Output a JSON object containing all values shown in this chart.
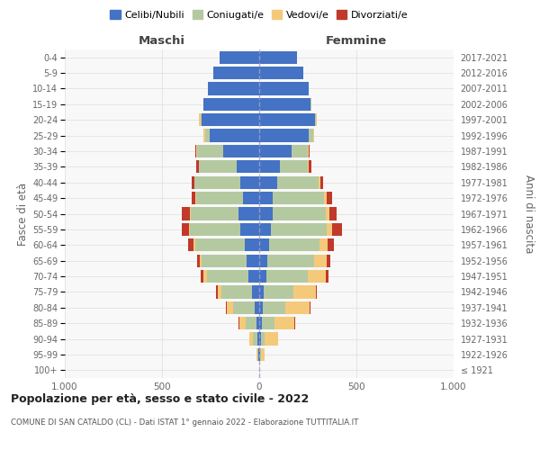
{
  "age_groups": [
    "100+",
    "95-99",
    "90-94",
    "85-89",
    "80-84",
    "75-79",
    "70-74",
    "65-69",
    "60-64",
    "55-59",
    "50-54",
    "45-49",
    "40-44",
    "35-39",
    "30-34",
    "25-29",
    "20-24",
    "15-19",
    "10-14",
    "5-9",
    "0-4"
  ],
  "birth_years": [
    "≤ 1921",
    "1922-1926",
    "1927-1931",
    "1932-1936",
    "1937-1941",
    "1942-1946",
    "1947-1951",
    "1952-1956",
    "1957-1961",
    "1962-1966",
    "1967-1971",
    "1972-1976",
    "1977-1981",
    "1982-1986",
    "1987-1991",
    "1992-1996",
    "1997-2001",
    "2002-2006",
    "2007-2011",
    "2012-2016",
    "2017-2021"
  ],
  "colors": {
    "celibe": "#4472c4",
    "coniugato": "#b5c9a1",
    "vedovo": "#f5c97a",
    "divorziato": "#c0392b"
  },
  "maschi": {
    "celibe": [
      1,
      3,
      8,
      15,
      25,
      35,
      55,
      65,
      75,
      95,
      105,
      85,
      95,
      115,
      185,
      255,
      295,
      285,
      265,
      235,
      205
    ],
    "coniugato": [
      0,
      4,
      25,
      55,
      110,
      160,
      215,
      230,
      255,
      260,
      245,
      240,
      240,
      195,
      135,
      25,
      8,
      2,
      0,
      0,
      0
    ],
    "vedovo": [
      0,
      5,
      20,
      30,
      30,
      20,
      18,
      12,
      8,
      5,
      5,
      2,
      0,
      0,
      5,
      5,
      5,
      0,
      0,
      0,
      0
    ],
    "divorziato": [
      0,
      0,
      0,
      5,
      5,
      5,
      12,
      12,
      28,
      38,
      42,
      22,
      12,
      12,
      5,
      0,
      0,
      0,
      0,
      0,
      0
    ]
  },
  "femmine": {
    "nubile": [
      1,
      3,
      8,
      12,
      18,
      22,
      38,
      42,
      52,
      62,
      68,
      68,
      92,
      105,
      165,
      255,
      285,
      265,
      255,
      225,
      195
    ],
    "coniugata": [
      0,
      5,
      22,
      65,
      115,
      155,
      210,
      240,
      260,
      285,
      275,
      265,
      215,
      145,
      85,
      22,
      8,
      2,
      0,
      0,
      0
    ],
    "vedova": [
      0,
      18,
      65,
      105,
      125,
      115,
      95,
      65,
      42,
      28,
      18,
      12,
      8,
      5,
      5,
      5,
      5,
      2,
      0,
      0,
      0
    ],
    "divorziata": [
      0,
      0,
      0,
      5,
      5,
      5,
      12,
      18,
      32,
      52,
      38,
      28,
      12,
      12,
      5,
      0,
      0,
      0,
      0,
      0,
      0
    ]
  },
  "title": "Popolazione per età, sesso e stato civile - 2022",
  "subtitle": "COMUNE DI SAN CATALDO (CL) - Dati ISTAT 1° gennaio 2022 - Elaborazione TUTTITALIA.IT",
  "xlabel_left": "Maschi",
  "xlabel_right": "Femmine",
  "ylabel_left": "Fasce di età",
  "ylabel_right": "Anni di nascita",
  "xlim": 1000,
  "bg_color": "#ffffff",
  "plot_bg": "#f8f8f8",
  "grid_color": "#dddddd",
  "legend_labels": [
    "Celibi/Nubili",
    "Coniugati/e",
    "Vedovi/e",
    "Divorziati/e"
  ]
}
